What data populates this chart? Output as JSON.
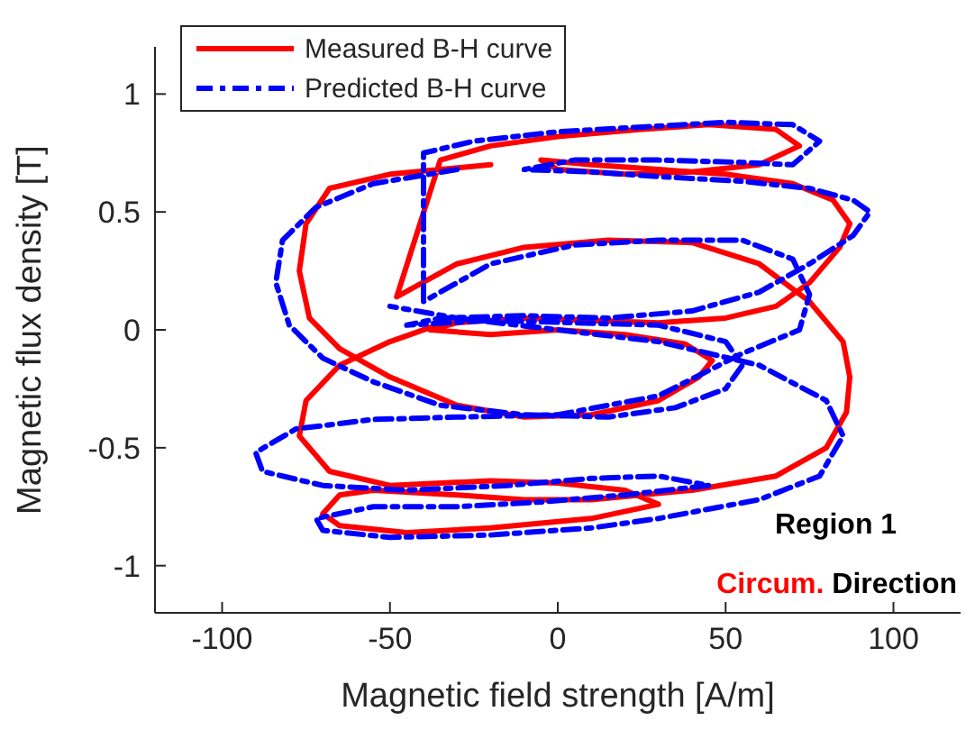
{
  "chart_data": {
    "type": "line",
    "xlabel": "Magnetic field strength [A/m]",
    "ylabel": "Magnetic flux density [T]",
    "xlim": [
      -120,
      120
    ],
    "xticks": [
      -100,
      -50,
      0,
      50,
      100
    ],
    "ylim": [
      -1.2,
      1.2
    ],
    "yticks": [
      -1,
      -0.5,
      0,
      0.5,
      1
    ],
    "legend": "top left",
    "marker": "none",
    "annotations": [
      "Region 1",
      "Circum. Direction"
    ],
    "series": [
      {
        "name": "Measured B-H curve",
        "color": "#ff0000",
        "line_style": "solid",
        "x": [
          -20,
          -50,
          -68,
          -75,
          -77,
          -74,
          -65,
          -50,
          -30,
          -10,
          10,
          30,
          42,
          46,
          38,
          20,
          0,
          -20,
          -38,
          -30,
          -10,
          10,
          30,
          50,
          65,
          75,
          84,
          87,
          82,
          70,
          50,
          30,
          10,
          -5,
          0,
          20,
          40,
          60,
          72,
          65,
          45,
          25,
          0,
          -20,
          -35,
          -48,
          -30,
          -10,
          15,
          40,
          60,
          75,
          85,
          87,
          86,
          80,
          65,
          40,
          10,
          -10,
          -30,
          -55,
          -65,
          -70,
          -65,
          -45,
          -20,
          10,
          30,
          20,
          0,
          -20,
          -50,
          -68,
          -77,
          -75,
          -65,
          -50,
          -30
        ],
        "values": [
          0.7,
          0.66,
          0.6,
          0.45,
          0.25,
          0.05,
          -0.08,
          -0.2,
          -0.32,
          -0.37,
          -0.36,
          -0.3,
          -0.2,
          -0.13,
          -0.06,
          -0.02,
          0,
          -0.02,
          0,
          0.03,
          0.05,
          0.04,
          0.03,
          0.05,
          0.1,
          0.2,
          0.35,
          0.45,
          0.55,
          0.62,
          0.66,
          0.68,
          0.7,
          0.72,
          0.68,
          0.66,
          0.67,
          0.7,
          0.78,
          0.85,
          0.87,
          0.85,
          0.82,
          0.78,
          0.72,
          0.14,
          0.28,
          0.35,
          0.38,
          0.37,
          0.28,
          0.12,
          -0.05,
          -0.2,
          -0.35,
          -0.5,
          -0.62,
          -0.68,
          -0.72,
          -0.72,
          -0.7,
          -0.68,
          -0.7,
          -0.78,
          -0.83,
          -0.86,
          -0.84,
          -0.8,
          -0.74,
          -0.68,
          -0.65,
          -0.64,
          -0.66,
          -0.6,
          -0.45,
          -0.3,
          -0.15,
          -0.05,
          0.05
        ]
      },
      {
        "name": "Predicted B-H curve",
        "color": "#0000ff",
        "line_style": "dashed",
        "x": [
          -30,
          -55,
          -72,
          -82,
          -84,
          -80,
          -70,
          -55,
          -35,
          -10,
          15,
          35,
          50,
          55,
          50,
          30,
          5,
          -20,
          -45,
          -35,
          -10,
          15,
          40,
          60,
          75,
          88,
          93,
          88,
          75,
          55,
          30,
          10,
          -10,
          5,
          30,
          55,
          70,
          78,
          70,
          50,
          25,
          0,
          -25,
          -40,
          -40,
          -20,
          5,
          30,
          55,
          70,
          75,
          72,
          55,
          30,
          0,
          -30,
          -55,
          -78,
          -90,
          -88,
          -70,
          -45,
          -15,
          10,
          30,
          45,
          20,
          -5,
          -30,
          -55,
          -72,
          -70,
          -50,
          -20,
          10,
          30,
          60,
          78,
          85,
          80,
          60,
          30,
          0,
          -30,
          -50
        ],
        "values": [
          0.68,
          0.62,
          0.52,
          0.38,
          0.2,
          0.02,
          -0.12,
          -0.22,
          -0.32,
          -0.36,
          -0.37,
          -0.33,
          -0.25,
          -0.15,
          -0.05,
          0.02,
          0.03,
          0.04,
          0.02,
          0.05,
          0.06,
          0.05,
          0.08,
          0.16,
          0.28,
          0.4,
          0.5,
          0.55,
          0.6,
          0.63,
          0.65,
          0.67,
          0.68,
          0.72,
          0.72,
          0.71,
          0.7,
          0.8,
          0.87,
          0.88,
          0.86,
          0.84,
          0.8,
          0.75,
          0.12,
          0.28,
          0.36,
          0.38,
          0.38,
          0.3,
          0.15,
          0.0,
          -0.1,
          -0.28,
          -0.36,
          -0.37,
          -0.38,
          -0.42,
          -0.52,
          -0.6,
          -0.66,
          -0.68,
          -0.66,
          -0.63,
          -0.62,
          -0.66,
          -0.7,
          -0.73,
          -0.75,
          -0.75,
          -0.8,
          -0.85,
          -0.88,
          -0.87,
          -0.84,
          -0.8,
          -0.72,
          -0.62,
          -0.45,
          -0.3,
          -0.15,
          -0.05,
          0,
          0.05,
          0.1
        ]
      }
    ]
  }
}
